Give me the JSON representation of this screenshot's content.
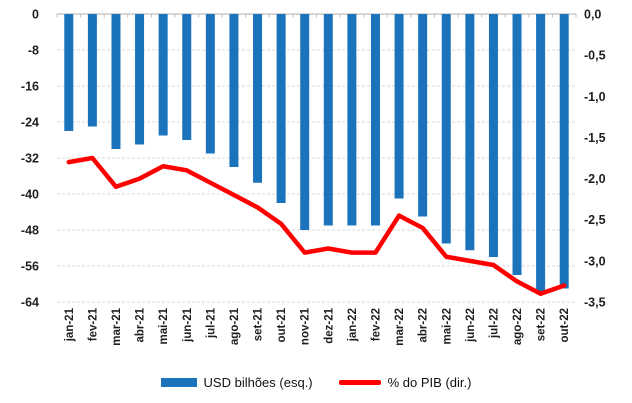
{
  "chart_data": {
    "type": "bar",
    "combo": "bar+line dual axis",
    "categories": [
      "jan-21",
      "fev-21",
      "mar-21",
      "abr-21",
      "mai-21",
      "jun-21",
      "jul-21",
      "ago-21",
      "set-21",
      "out-21",
      "nov-21",
      "dez-21",
      "jan-22",
      "fev-22",
      "mar-22",
      "abr-22",
      "mai-22",
      "jun-22",
      "jul-22",
      "ago-22",
      "set-22",
      "out-22"
    ],
    "series": [
      {
        "name": "USD bilhões (esq.)",
        "type": "bar",
        "axis": "left",
        "color": "#1B73BC",
        "values": [
          -26,
          -25,
          -30,
          -29,
          -27,
          -28,
          -31,
          -34,
          -37.5,
          -42,
          -48,
          -47,
          -47,
          -47,
          -41,
          -45,
          -51,
          -52.5,
          -54,
          -58,
          -62,
          -61
        ]
      },
      {
        "name": "% do PIB (dir.)",
        "type": "line",
        "axis": "right",
        "color": "#FF0000",
        "values": [
          -1.8,
          -1.75,
          -2.1,
          -2.0,
          -1.85,
          -1.9,
          -2.05,
          -2.2,
          -2.35,
          -2.55,
          -2.9,
          -2.85,
          -2.9,
          -2.9,
          -2.45,
          -2.6,
          -2.95,
          -3.0,
          -3.05,
          -3.25,
          -3.4,
          -3.3
        ]
      }
    ],
    "title": "",
    "xlabel": "",
    "ylabel_left": "",
    "ylabel_right": "",
    "left_axis": {
      "range": [
        0,
        -64
      ],
      "tick_values": [
        0,
        -8,
        -16,
        -24,
        -32,
        -40,
        -48,
        -56,
        -64
      ],
      "tick_labels": [
        "0",
        "-8",
        "-16",
        "-24",
        "-32",
        "-40",
        "-48",
        "-56",
        "-64"
      ]
    },
    "right_axis": {
      "range": [
        0,
        -3.5
      ],
      "tick_values": [
        0,
        -0.5,
        -1,
        -1.5,
        -2,
        -2.5,
        -3,
        -3.5
      ],
      "tick_labels": [
        "0,0",
        "-0,5",
        "-1,0",
        "-1,5",
        "-2,0",
        "-2,5",
        "-3,0",
        "-3,5"
      ]
    },
    "legend_position": "bottom",
    "grid": "horizontal dashed",
    "grid_color": "#D9D9D9",
    "axis_line_color": "#BFBFBF",
    "x_labels_rotation": "-90 (reads bottom-to-top)"
  },
  "legend": {
    "bar_label": "USD bilhões (esq.)",
    "line_label": "% do PIB (dir.)"
  }
}
